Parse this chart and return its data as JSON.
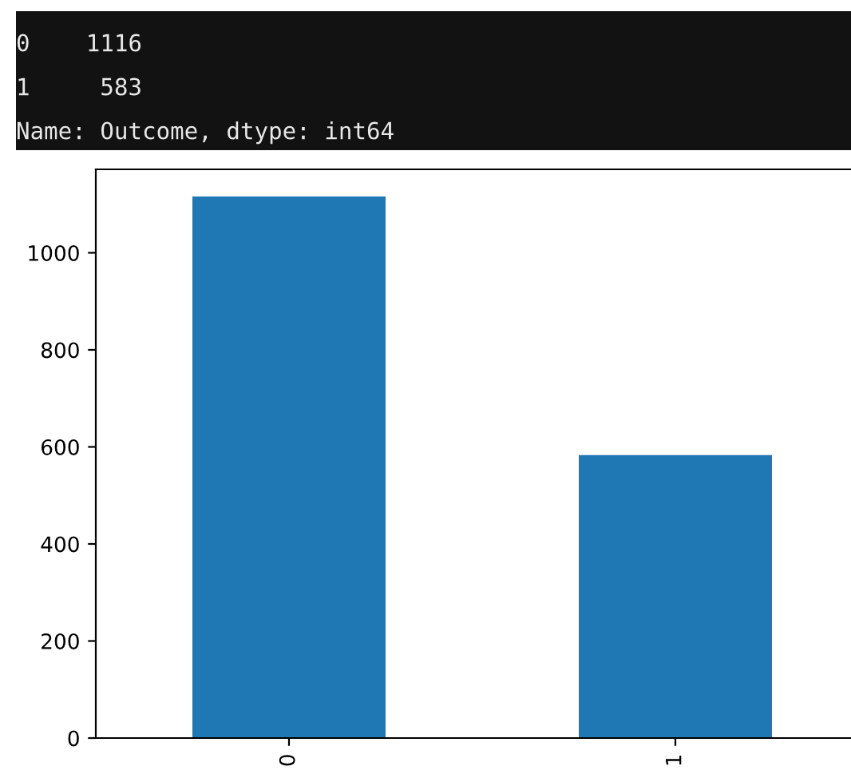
{
  "chart_data": {
    "type": "bar",
    "categories": [
      "0",
      "1"
    ],
    "values": [
      1116,
      583
    ],
    "color": "#1f77b4",
    "ylim": [
      0,
      1172
    ],
    "yticks": [
      0,
      200,
      400,
      600,
      800,
      1000
    ],
    "annotations": [
      "0    1116",
      "1     583",
      "Name: Outcome, dtype: int64"
    ]
  }
}
